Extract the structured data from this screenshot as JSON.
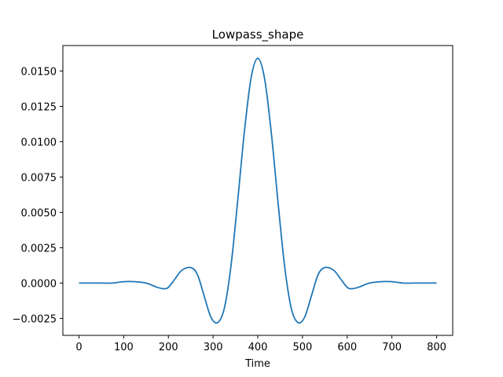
{
  "chart_data": {
    "type": "line",
    "title": "Lowpass_shape",
    "xlabel": "Time",
    "ylabel": "",
    "xlim": [
      -36,
      836
    ],
    "ylim": [
      -0.0037,
      0.0168
    ],
    "xticks": [
      0,
      100,
      200,
      300,
      400,
      500,
      600,
      700,
      800
    ],
    "xtick_labels": [
      "0",
      "100",
      "200",
      "300",
      "400",
      "500",
      "600",
      "700",
      "800"
    ],
    "yticks": [
      -0.0025,
      0.0,
      0.0025,
      0.005,
      0.0075,
      0.01,
      0.0125,
      0.015
    ],
    "ytick_labels": [
      "−0.0025",
      "0.0000",
      "0.0025",
      "0.0050",
      "0.0075",
      "0.0100",
      "0.0125",
      "0.0150"
    ],
    "grid": false,
    "line_color": "#1f77b4",
    "series": [
      {
        "x": [
          0,
          25,
          50,
          75,
          100,
          125,
          150,
          175,
          190,
          200,
          215,
          230,
          250,
          265,
          280,
          295,
          310,
          325,
          340,
          355,
          370,
          385,
          400,
          415,
          430,
          445,
          460,
          475,
          490,
          505,
          520,
          535,
          550,
          570,
          585,
          600,
          610,
          625,
          650,
          675,
          700,
          725,
          750,
          775,
          800
        ],
        "values": [
          0.0,
          0.0,
          0.0,
          0.0,
          0.0001,
          0.0001,
          0.0,
          -0.0003,
          -0.0004,
          -0.0003,
          0.0003,
          0.0009,
          0.0011,
          0.0006,
          -0.0009,
          -0.0024,
          -0.0028,
          -0.0018,
          0.0012,
          0.0058,
          0.0107,
          0.0145,
          0.0159,
          0.0145,
          0.0107,
          0.0058,
          0.0012,
          -0.0018,
          -0.0028,
          -0.0024,
          -0.0009,
          0.0006,
          0.0011,
          0.0009,
          0.0003,
          -0.0003,
          -0.0004,
          -0.0003,
          0.0,
          0.0001,
          0.0001,
          0.0,
          0.0,
          0.0,
          0.0
        ]
      }
    ]
  }
}
